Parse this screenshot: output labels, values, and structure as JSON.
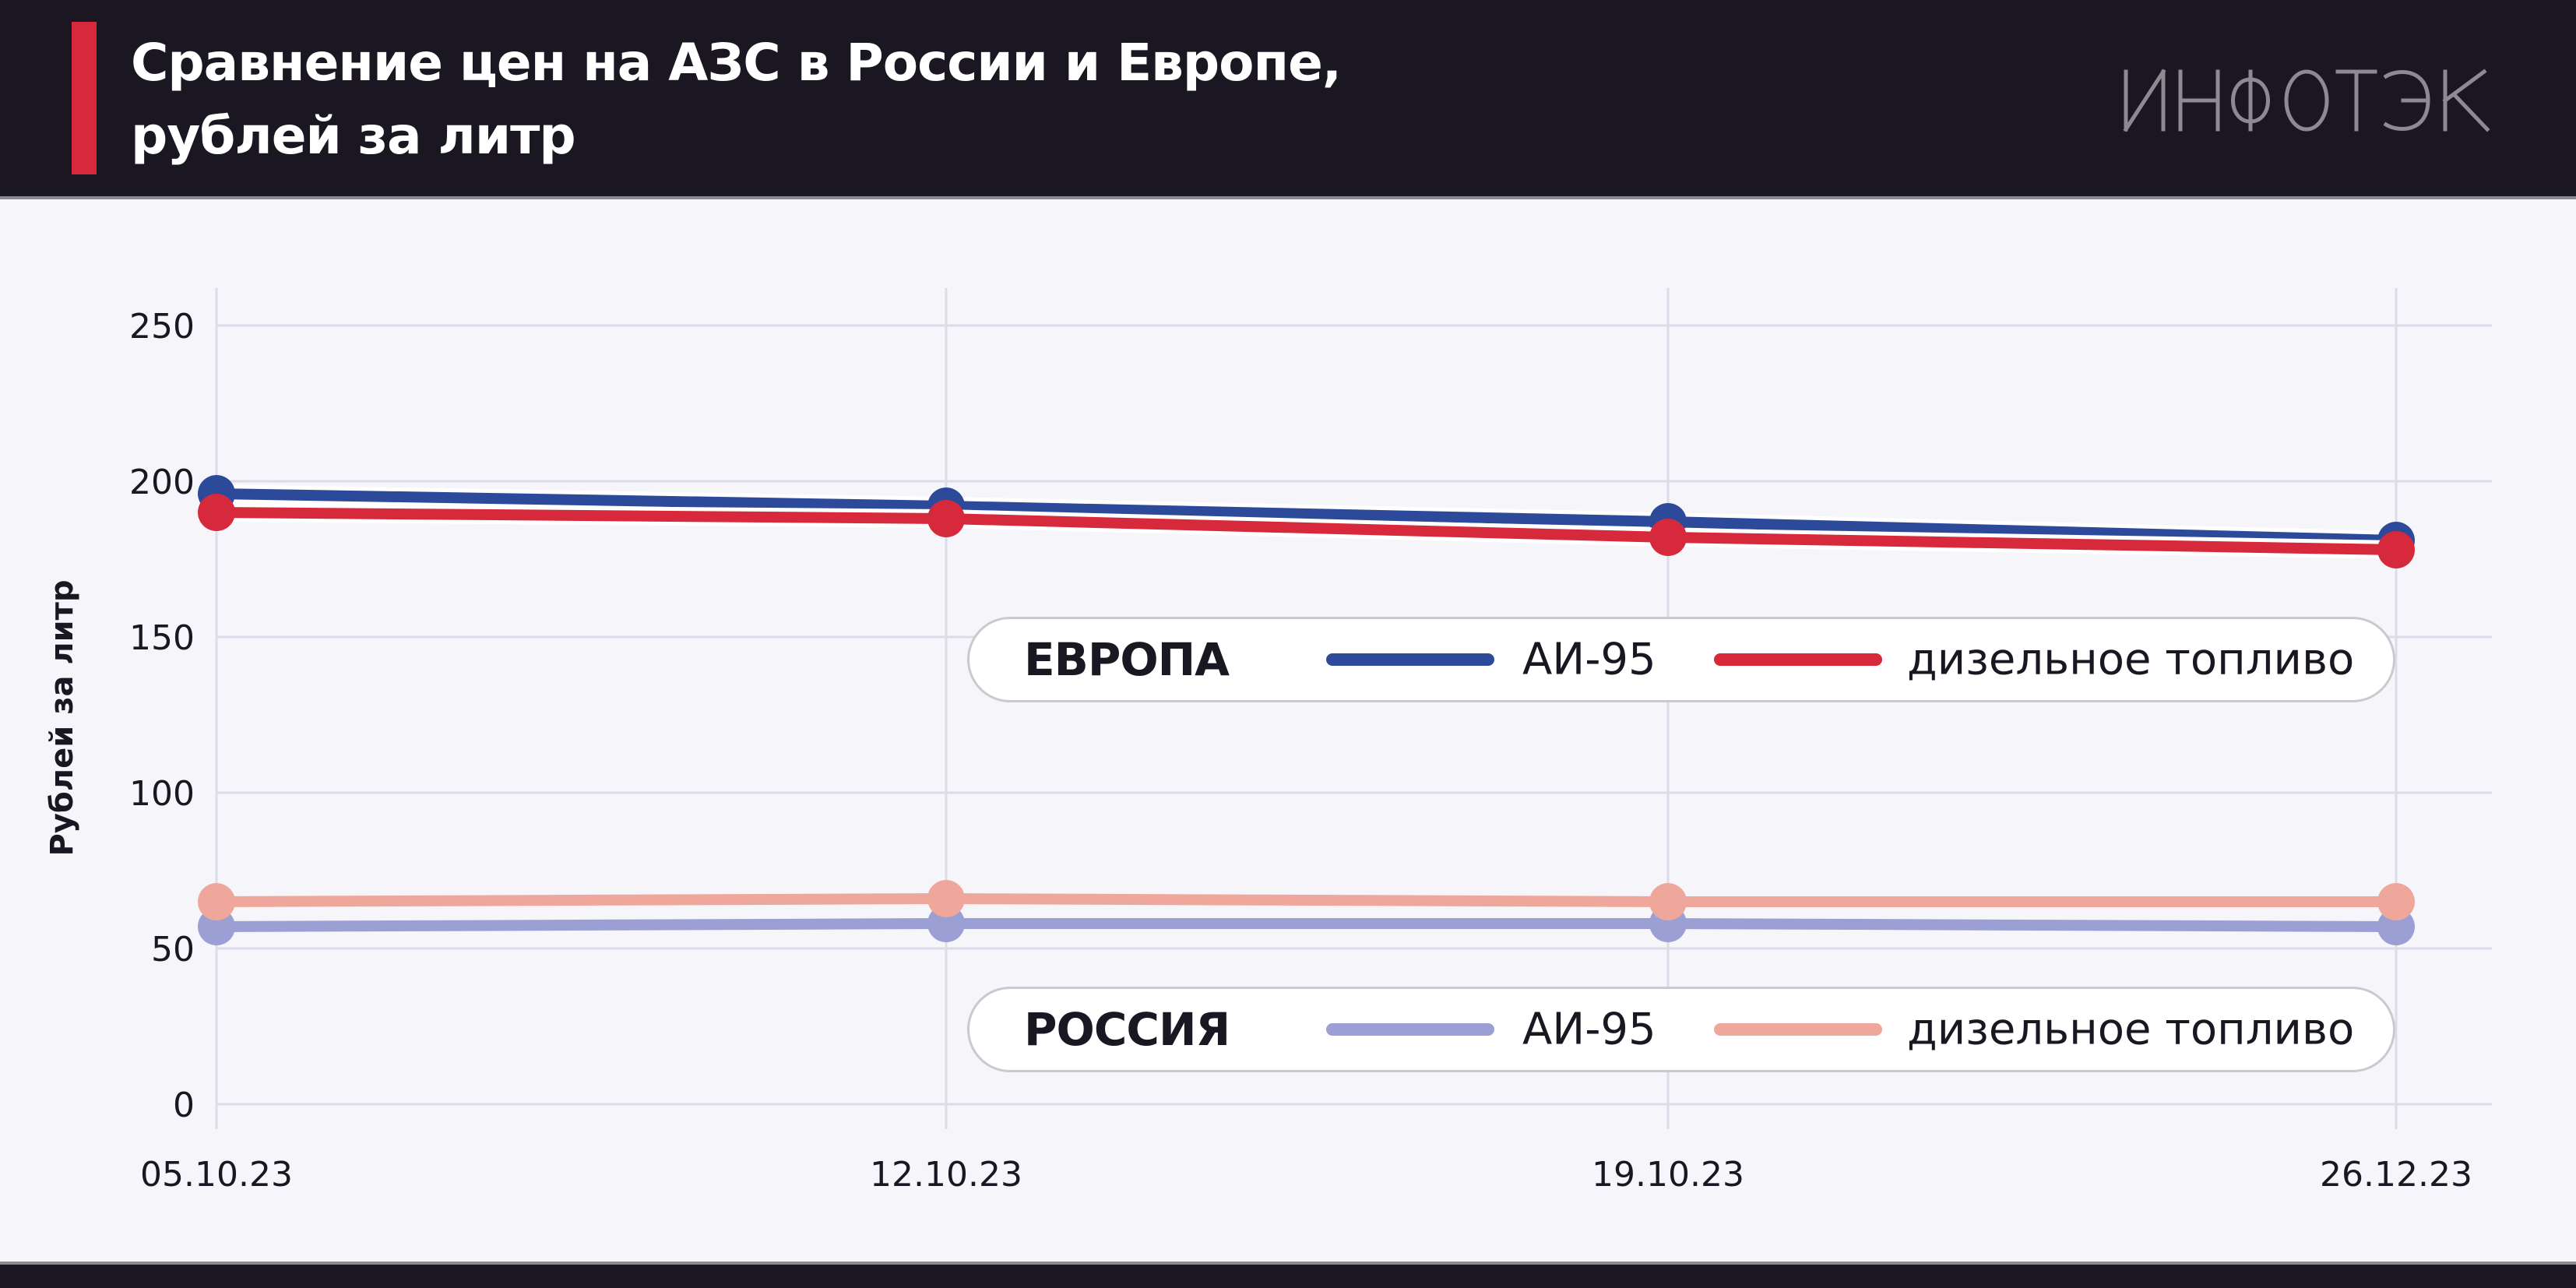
{
  "header": {
    "title_line1": "Сравнение цен на АЗС в России и Европе,",
    "title_line2": "рублей за литр",
    "logo_text": "ИНФОТЭК"
  },
  "legend": {
    "europe": {
      "group": "ЕВРОПА",
      "series1": "АИ-95",
      "series2": "дизельное топливо"
    },
    "russia": {
      "group": "РОССИЯ",
      "series1": "АИ-95",
      "series2": "дизельное топливо"
    }
  },
  "colors": {
    "header_bg": "#1b1722",
    "accent": "#d6293b",
    "europe_ai95": "#2d4a9a",
    "europe_diesel": "#d6293b",
    "russia_ai95": "#9b9fd3",
    "russia_diesel": "#eea79a",
    "grid": "#dcdce8"
  },
  "chart_data": {
    "type": "line",
    "title": "Сравнение цен на АЗС в России и Европе, рублей за литр",
    "xlabel": "",
    "ylabel": "Рублей за литр",
    "x": [
      "05.10.23",
      "12.10.23",
      "19.10.23",
      "26.12.23"
    ],
    "yticks": [
      0,
      50,
      100,
      150,
      200,
      250
    ],
    "ylim": [
      0,
      250
    ],
    "grid": true,
    "series": [
      {
        "name": "ЕВРОПА АИ-95",
        "color": "#2d4a9a",
        "values": [
          196,
          192,
          187,
          181
        ]
      },
      {
        "name": "ЕВРОПА дизельное топливо",
        "color": "#d6293b",
        "values": [
          190,
          188,
          182,
          178
        ]
      },
      {
        "name": "РОССИЯ АИ-95",
        "color": "#9b9fd3",
        "values": [
          57,
          58,
          58,
          57
        ]
      },
      {
        "name": "РОССИЯ дизельное топливо",
        "color": "#eea79a",
        "values": [
          65,
          66,
          65,
          65
        ]
      }
    ]
  }
}
